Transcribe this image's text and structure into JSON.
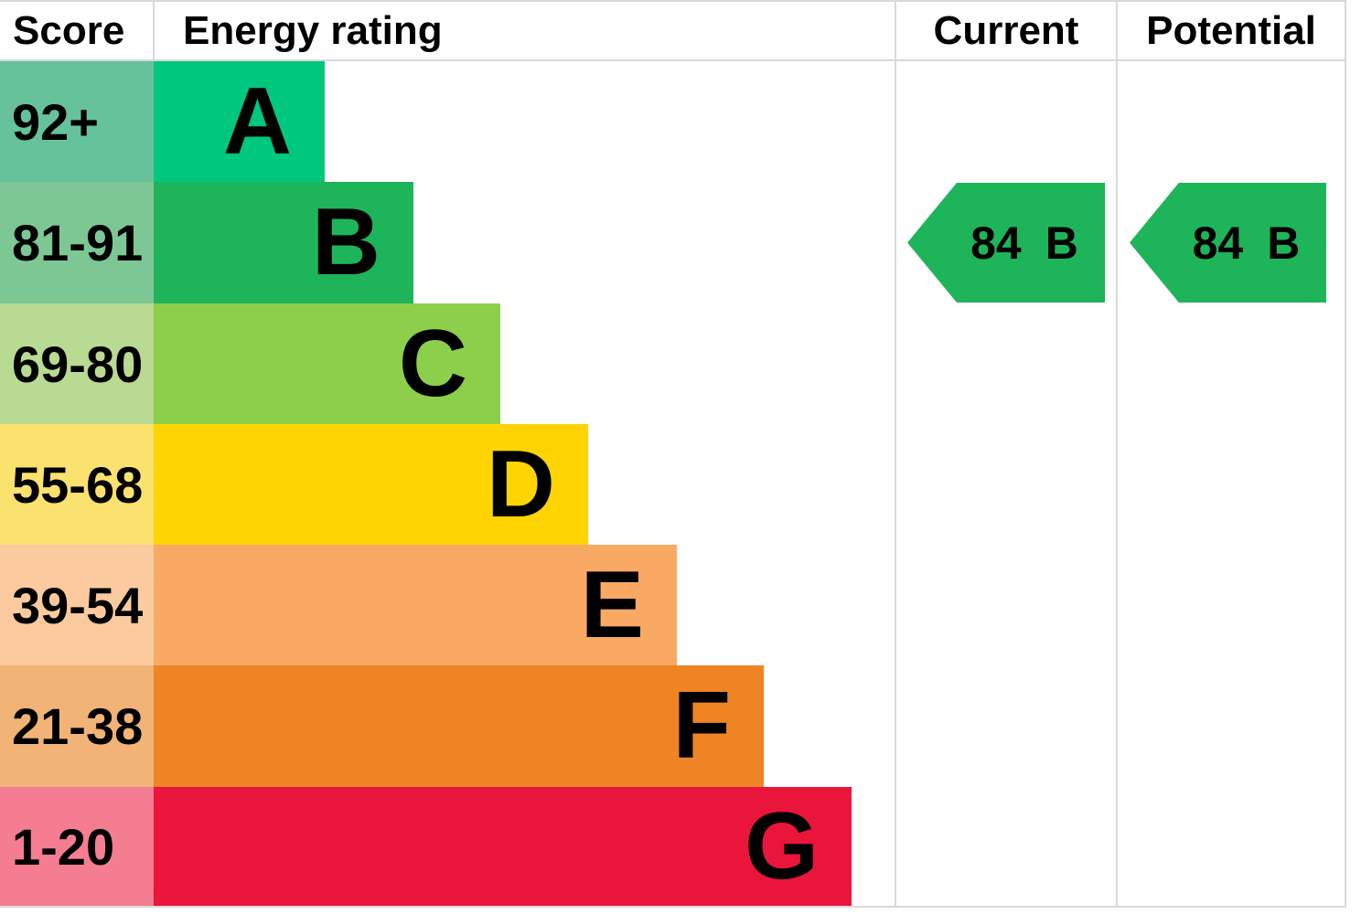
{
  "chart_data": {
    "type": "bar",
    "columns": [
      "Score",
      "Energy rating",
      "Current",
      "Potential"
    ],
    "bands": [
      {
        "letter": "A",
        "score": "92+",
        "color": "#00c77e",
        "score_bg": "#66c29b"
      },
      {
        "letter": "B",
        "score": "81-91",
        "color": "#1eb45a",
        "score_bg": "#7dc794"
      },
      {
        "letter": "C",
        "score": "69-80",
        "color": "#8ccf4a",
        "score_bg": "#b8da92"
      },
      {
        "letter": "D",
        "score": "55-68",
        "color": "#ffd401",
        "score_bg": "#fbe26e"
      },
      {
        "letter": "E",
        "score": "39-54",
        "color": "#faa965",
        "score_bg": "#fbca9e"
      },
      {
        "letter": "F",
        "score": "21-38",
        "color": "#ee8424",
        "score_bg": "#f1b376"
      },
      {
        "letter": "G",
        "score": "1-20",
        "color": "#e9153b",
        "score_bg": "#f47d92"
      }
    ],
    "current": {
      "value": "84",
      "band": "B",
      "color": "#1eb45a"
    },
    "potential": {
      "value": "84",
      "band": "B",
      "color": "#1eb45a"
    }
  }
}
